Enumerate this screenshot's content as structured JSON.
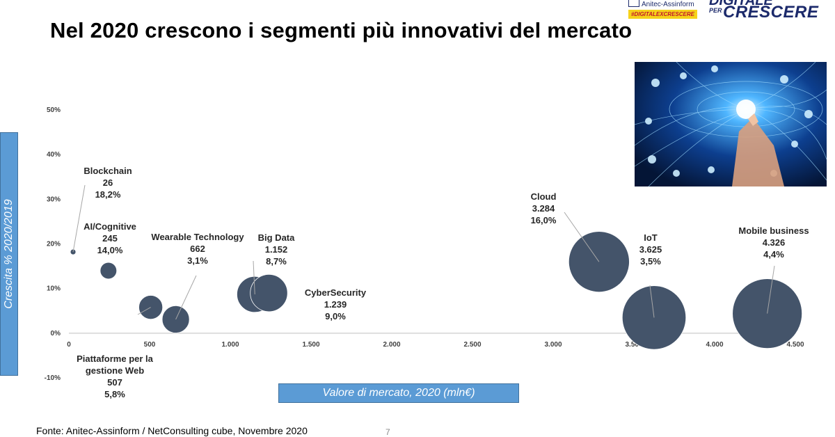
{
  "page": {
    "title": "Nel 2020 crescono i segmenti più innovativi del mercato",
    "source": "Fonte: Anitec-Assinform / NetConsulting cube, Novembre  2020",
    "slide_number": "7"
  },
  "brand": {
    "org": "Anitec-Assinform",
    "tag": "#DIGITALEXCRESCERE",
    "line1": "DIGITALE",
    "per": "PER",
    "line2": "CRESCERE"
  },
  "colors": {
    "bubble": "#44546a",
    "axis_box": "#5b9bd5",
    "leader": "#a6a6a6"
  },
  "chart_data": {
    "type": "scatter",
    "title": "",
    "xlabel": "Valore di mercato, 2020 (mln€)",
    "ylabel": "Crescita % 2020/2019",
    "xlim": [
      0,
      4500
    ],
    "ylim": [
      -10,
      50
    ],
    "x_ticks": [
      {
        "value": 0,
        "label": "0"
      },
      {
        "value": 500,
        "label": "500"
      },
      {
        "value": 1000,
        "label": "1.000"
      },
      {
        "value": 1500,
        "label": "1.500"
      },
      {
        "value": 2000,
        "label": "2.000"
      },
      {
        "value": 2500,
        "label": "2.500"
      },
      {
        "value": 3000,
        "label": "3.000"
      },
      {
        "value": 3500,
        "label": "3.500"
      },
      {
        "value": 4000,
        "label": "4.000"
      },
      {
        "value": 4500,
        "label": "4.500"
      }
    ],
    "y_ticks": [
      {
        "value": -10,
        "label": "-10%"
      },
      {
        "value": 0,
        "label": "0%"
      },
      {
        "value": 10,
        "label": "10%"
      },
      {
        "value": 20,
        "label": "20%"
      },
      {
        "value": 30,
        "label": "30%"
      },
      {
        "value": 40,
        "label": "40%"
      },
      {
        "value": 50,
        "label": "50%"
      }
    ],
    "points": [
      {
        "name": "Blockchain",
        "x": 26,
        "y": 18.2,
        "value_label": "26",
        "growth_label": "18,2%"
      },
      {
        "name": "AI/Cognitive",
        "x": 245,
        "y": 14.0,
        "value_label": "245",
        "growth_label": "14,0%"
      },
      {
        "name": "Piattaforme per la gestione Web",
        "x": 507,
        "y": 5.8,
        "value_label": "507",
        "growth_label": "5,8%"
      },
      {
        "name": "Wearable Technology",
        "x": 662,
        "y": 3.1,
        "value_label": "662",
        "growth_label": "3,1%"
      },
      {
        "name": "Big Data",
        "x": 1152,
        "y": 8.7,
        "value_label": "1.152",
        "growth_label": "8,7%"
      },
      {
        "name": "CyberSecurity",
        "x": 1239,
        "y": 9.0,
        "value_label": "1.239",
        "growth_label": "9,0%"
      },
      {
        "name": "Cloud",
        "x": 3284,
        "y": 16.0,
        "value_label": "3.284",
        "growth_label": "16,0%"
      },
      {
        "name": "IoT",
        "x": 3625,
        "y": 3.5,
        "value_label": "3.625",
        "growth_label": "3,5%"
      },
      {
        "name": "Mobile business",
        "x": 4326,
        "y": 4.4,
        "value_label": "4.326",
        "growth_label": "4,4%"
      }
    ]
  }
}
